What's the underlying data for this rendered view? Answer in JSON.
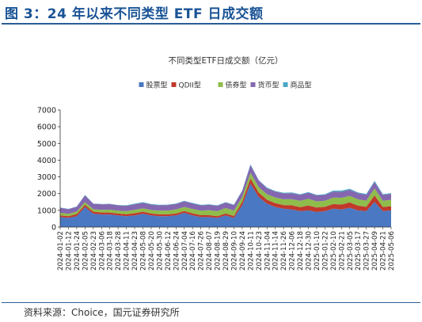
{
  "figure_title": "图 3：24 年以来不同类型 ETF 日成交额",
  "source_note": "资料来源：Choice，国元证券研究所",
  "chart_data": {
    "type": "area",
    "stacked": true,
    "title": "不同类型ETF日成交额（亿元）",
    "xlabel": "",
    "ylabel": "",
    "ylim": [
      0,
      7000
    ],
    "yticks": [
      0,
      1000,
      2000,
      3000,
      4000,
      5000,
      6000,
      7000
    ],
    "grid": false,
    "legend_position": "top",
    "x": [
      "2024-01-02",
      "2024-01-12",
      "2024-01-24",
      "2024-02-05",
      "2024-02-23",
      "2024-03-06",
      "2024-03-18",
      "2024-03-28",
      "2024-04-11",
      "2024-04-23",
      "2024-05-08",
      "2024-05-20",
      "2024-05-30",
      "2024-06-12",
      "2024-06-24",
      "2024-07-04",
      "2024-07-16",
      "2024-07-26",
      "2024-08-07",
      "2024-08-19",
      "2024-08-29",
      "2024-09-10",
      "2024-09-24",
      "2024-10-11",
      "2024-10-23",
      "2024-11-04",
      "2024-11-14",
      "2024-11-26",
      "2024-12-06",
      "2024-12-18",
      "2024-12-30",
      "2025-01-10",
      "2025-01-22",
      "2025-02-10",
      "2025-02-21",
      "2025-03-05",
      "2025-03-17",
      "2025-03-27",
      "2025-04-09",
      "2025-04-21",
      "2025-05-06"
    ],
    "series": [
      {
        "name": "股票型",
        "color": "#4a78c2",
        "values": [
          600,
          550,
          650,
          1200,
          800,
          750,
          750,
          700,
          650,
          700,
          800,
          700,
          650,
          650,
          700,
          850,
          700,
          600,
          600,
          550,
          700,
          550,
          1300,
          2600,
          1800,
          1400,
          1200,
          1100,
          1050,
          950,
          1000,
          900,
          950,
          1100,
          1050,
          1150,
          1000,
          950,
          1500,
          950,
          1000
        ]
      },
      {
        "name": "QDII型",
        "color": "#c0392b",
        "values": [
          100,
          100,
          130,
          130,
          120,
          120,
          120,
          110,
          120,
          130,
          120,
          110,
          110,
          110,
          110,
          110,
          120,
          110,
          110,
          100,
          110,
          110,
          220,
          300,
          260,
          230,
          230,
          210,
          250,
          240,
          290,
          270,
          260,
          280,
          300,
          320,
          280,
          260,
          390,
          250,
          250
        ]
      },
      {
        "name": "债券型",
        "color": "#8fbc4a",
        "values": [
          150,
          140,
          140,
          160,
          150,
          160,
          170,
          170,
          180,
          200,
          200,
          210,
          220,
          230,
          240,
          240,
          260,
          270,
          300,
          300,
          330,
          330,
          280,
          350,
          330,
          330,
          340,
          350,
          370,
          380,
          400,
          370,
          360,
          380,
          400,
          390,
          380,
          370,
          420,
          370,
          380
        ]
      },
      {
        "name": "货币型",
        "color": "#8467b0",
        "values": [
          300,
          280,
          290,
          400,
          320,
          330,
          330,
          320,
          320,
          330,
          330,
          320,
          320,
          320,
          330,
          340,
          330,
          320,
          320,
          320,
          320,
          320,
          350,
          450,
          380,
          360,
          350,
          350,
          360,
          350,
          360,
          350,
          350,
          360,
          360,
          370,
          360,
          350,
          380,
          350,
          350
        ]
      },
      {
        "name": "商品型",
        "color": "#4aa8c4",
        "values": [
          20,
          20,
          20,
          30,
          20,
          20,
          20,
          20,
          30,
          40,
          40,
          40,
          30,
          30,
          30,
          30,
          30,
          30,
          30,
          30,
          30,
          30,
          40,
          50,
          40,
          40,
          40,
          40,
          40,
          40,
          40,
          40,
          40,
          60,
          70,
          60,
          50,
          50,
          70,
          50,
          50
        ]
      }
    ]
  }
}
